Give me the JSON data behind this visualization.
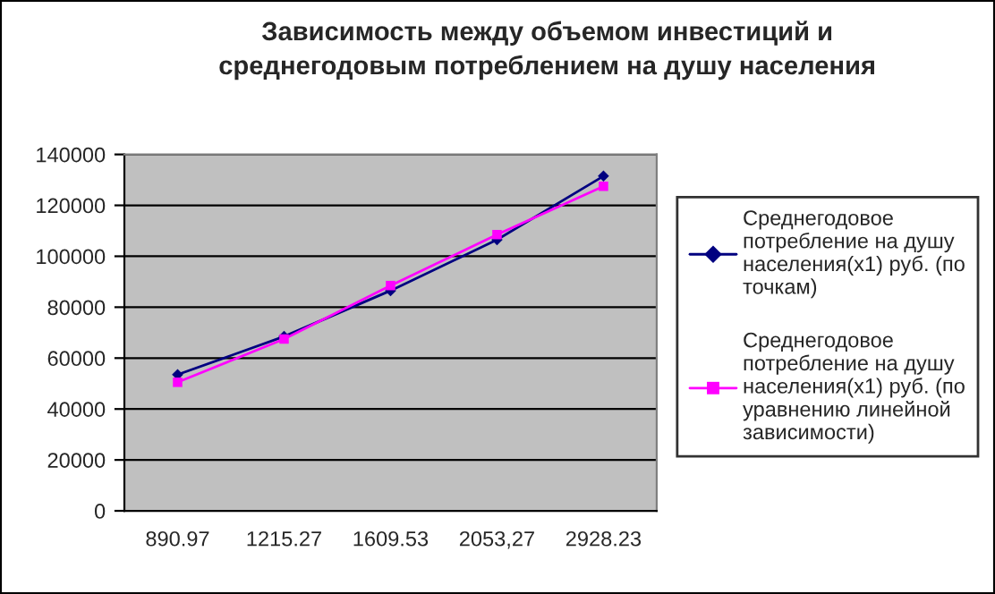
{
  "chart_data": {
    "type": "line",
    "title": "Зависимость между объемом инвестиций и\nсреднегодовым потреблением на душу населения",
    "categories": [
      "890.97",
      "1215.27",
      "1609.53",
      "2053,27",
      "2928.23"
    ],
    "series": [
      {
        "name": "Среднегодовое\nпотребление на душу\nнаселения(x1) руб. (по\nточкам)",
        "color": "#000080",
        "marker": "diamond",
        "values": [
          53500,
          68500,
          86500,
          106500,
          131500
        ]
      },
      {
        "name": "Среднегодовое\nпотребление на душу\nнаселения(x1) руб. (по\nуравнению линейной\nзависимости)",
        "color": "#ff00ff",
        "marker": "square",
        "values": [
          50500,
          67500,
          88500,
          108500,
          127500
        ]
      }
    ],
    "ylim": [
      0,
      140000
    ],
    "yticks": [
      0,
      20000,
      40000,
      60000,
      80000,
      100000,
      120000,
      140000
    ],
    "grid": "y",
    "legend": "right",
    "line_style": "solid"
  }
}
